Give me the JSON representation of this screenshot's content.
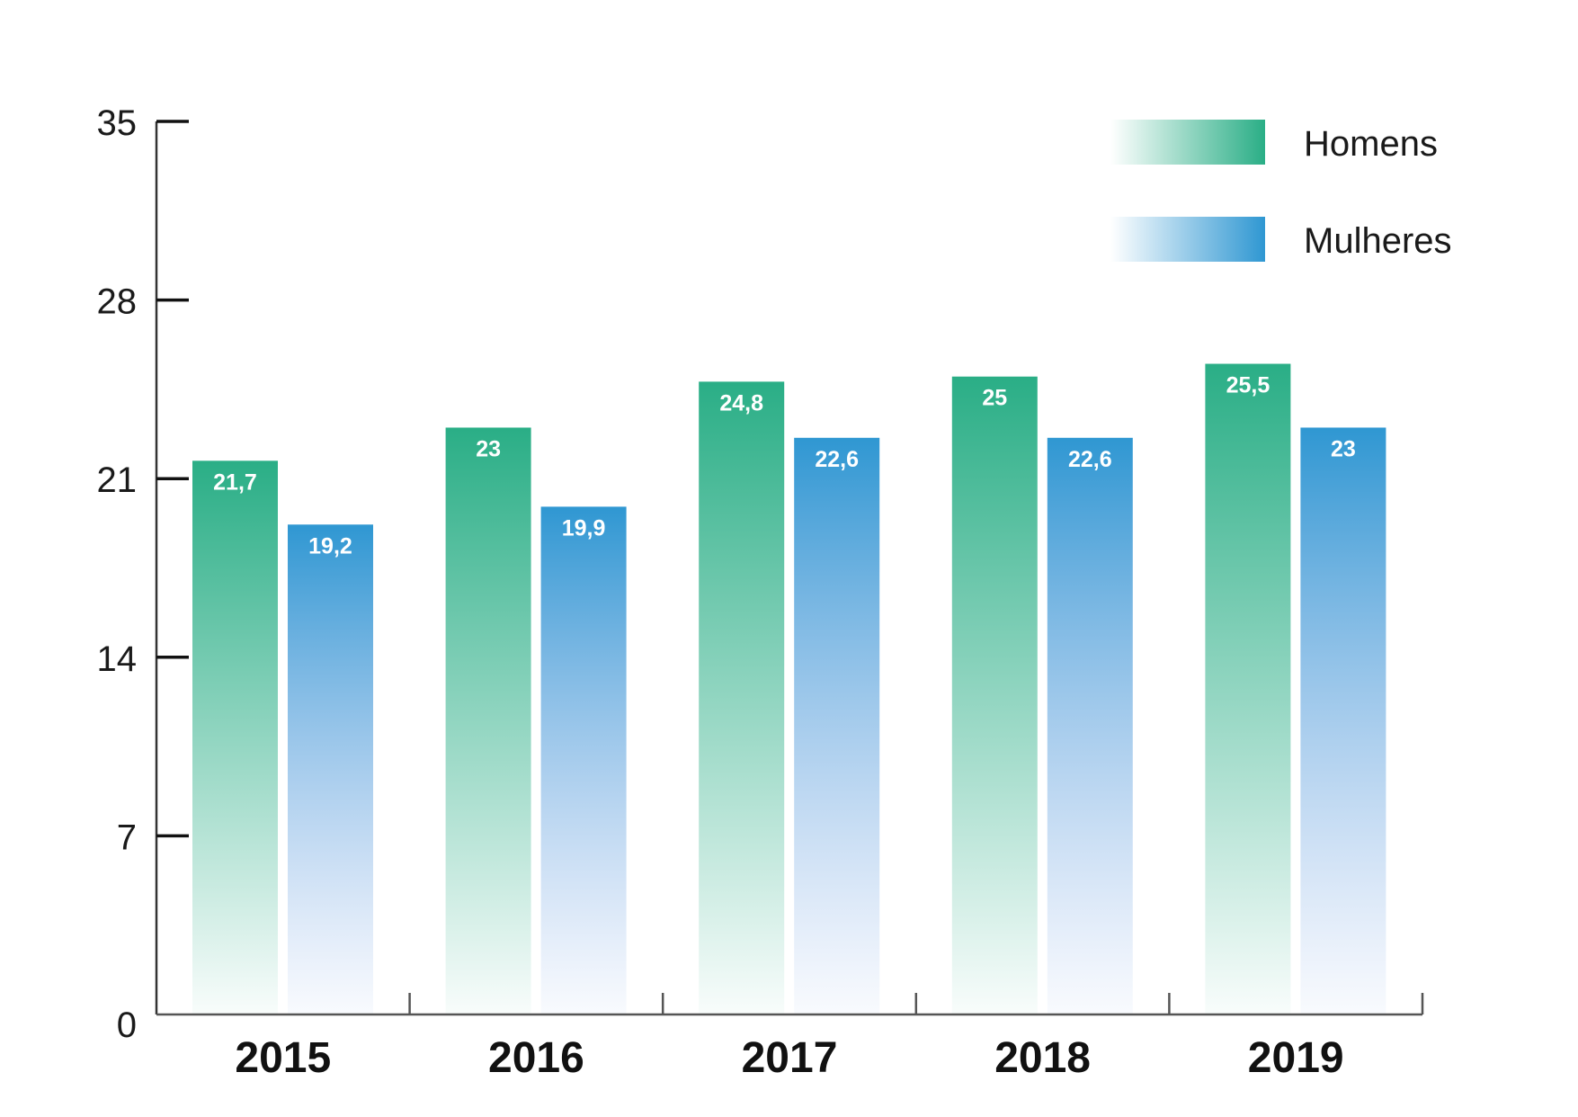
{
  "chart_data": {
    "type": "bar",
    "categories": [
      "2015",
      "2016",
      "2017",
      "2018",
      "2019"
    ],
    "series": [
      {
        "name": "Homens",
        "values": [
          21.7,
          23,
          24.8,
          25,
          25.5
        ],
        "labels": [
          "21,7",
          "23",
          "24,8",
          "25",
          "25,5"
        ],
        "color": "#2aae86"
      },
      {
        "name": "Mulheres",
        "values": [
          19.2,
          19.9,
          22.6,
          22.6,
          23
        ],
        "labels": [
          "19,2",
          "19,9",
          "22,6",
          "22,6",
          "23"
        ],
        "color": "#2f97d2"
      }
    ],
    "yticks": [
      0,
      7,
      14,
      21,
      28,
      35
    ],
    "ylim": [
      0,
      35
    ],
    "legend_position": "top-right",
    "grid": false
  }
}
